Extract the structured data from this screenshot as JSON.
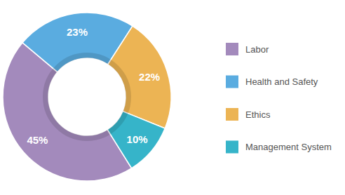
{
  "chart_data": {
    "type": "donut",
    "categories": [
      "Labor",
      "Health and Safety",
      "Ethics",
      "Management System"
    ],
    "values": [
      45,
      23,
      22,
      10
    ],
    "value_labels": [
      "45%",
      "23%",
      "22%",
      "10%"
    ],
    "colors": [
      "#a38abc",
      "#5aace0",
      "#ecb454",
      "#36b4c9"
    ],
    "data_labels": true,
    "legend": "right"
  }
}
